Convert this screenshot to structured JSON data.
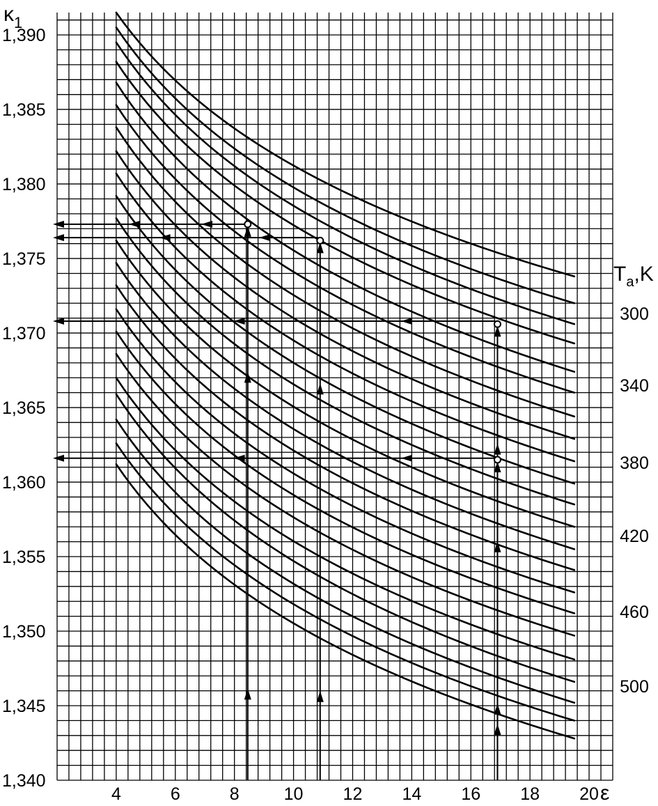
{
  "chart_data": {
    "type": "line",
    "title": "",
    "xlabel": "ε",
    "ylabel": "κ1",
    "ylabel_main": "κ",
    "ylabel_sub": "1",
    "right_axis_label": "Ta,K",
    "right_axis_label_main": "T",
    "right_axis_label_sub": "a",
    "right_axis_label_suffix": ",K",
    "xlim": [
      2,
      20.8
    ],
    "ylim": [
      1.34,
      1.3915
    ],
    "grid": true,
    "x_ticks": [
      "4",
      "6",
      "8",
      "10",
      "12",
      "14",
      "16",
      "18",
      "20"
    ],
    "y_ticks": [
      "1,340",
      "1,345",
      "1,350",
      "1,355",
      "1,360",
      "1,365",
      "1,370",
      "1,375",
      "1,380",
      "1,385",
      "1,390"
    ],
    "right_ticks": [
      {
        "label": "300",
        "k": 1.3713
      },
      {
        "label": "340",
        "k": 1.3665
      },
      {
        "label": "380",
        "k": 1.3613
      },
      {
        "label": "420",
        "k": 1.3564
      },
      {
        "label": "460",
        "k": 1.3513
      },
      {
        "label": "500",
        "k": 1.3463
      }
    ],
    "series": [
      {
        "values": [
          [
            4,
            1.3915
          ],
          [
            19.5,
            1.3738
          ]
        ]
      },
      {
        "values": [
          [
            4,
            1.3905
          ],
          [
            19.5,
            1.372
          ]
        ]
      },
      {
        "values": [
          [
            4,
            1.3895
          ],
          [
            19.5,
            1.3706
          ]
        ]
      },
      {
        "values": [
          [
            4,
            1.3882
          ],
          [
            19.5,
            1.3693
          ]
        ]
      },
      {
        "values": [
          [
            4,
            1.3868
          ],
          [
            19.5,
            1.3674
          ]
        ]
      },
      {
        "values": [
          [
            4,
            1.3853
          ],
          [
            19.5,
            1.366
          ]
        ]
      },
      {
        "values": [
          [
            4,
            1.3838
          ],
          [
            19.5,
            1.3644
          ]
        ]
      },
      {
        "values": [
          [
            4,
            1.3822
          ],
          [
            19.5,
            1.3629
          ]
        ]
      },
      {
        "values": [
          [
            4,
            1.3807
          ],
          [
            19.5,
            1.3614
          ]
        ]
      },
      {
        "values": [
          [
            4,
            1.3792
          ],
          [
            19.5,
            1.3599
          ]
        ]
      },
      {
        "values": [
          [
            4,
            1.3777
          ],
          [
            19.5,
            1.3585
          ]
        ]
      },
      {
        "values": [
          [
            4,
            1.3762
          ],
          [
            19.5,
            1.357
          ]
        ]
      },
      {
        "values": [
          [
            4,
            1.3747
          ],
          [
            19.5,
            1.3555
          ]
        ]
      },
      {
        "values": [
          [
            4,
            1.3732
          ],
          [
            19.5,
            1.3541
          ]
        ]
      },
      {
        "values": [
          [
            4,
            1.3716
          ],
          [
            19.5,
            1.3526
          ]
        ]
      },
      {
        "values": [
          [
            4,
            1.3701
          ],
          [
            19.5,
            1.3512
          ]
        ]
      },
      {
        "values": [
          [
            4,
            1.3686
          ],
          [
            19.5,
            1.3497
          ]
        ]
      },
      {
        "values": [
          [
            4,
            1.367
          ],
          [
            19.5,
            1.3481
          ]
        ]
      },
      {
        "values": [
          [
            4,
            1.3659
          ],
          [
            19.5,
            1.3466
          ]
        ]
      },
      {
        "values": [
          [
            4,
            1.3642
          ],
          [
            19.5,
            1.3452
          ]
        ]
      },
      {
        "values": [
          [
            4,
            1.3626
          ],
          [
            19.5,
            1.344
          ]
        ]
      },
      {
        "values": [
          [
            4,
            1.3612
          ],
          [
            19.5,
            1.3428
          ]
        ]
      }
    ],
    "example_points": [
      {
        "eps": 8.45,
        "k": 1.3773,
        "k_read": 1.3773
      },
      {
        "eps": 10.9,
        "k": 1.3762,
        "k_read": 1.3764
      },
      {
        "eps": 16.9,
        "k": 1.3706,
        "k_read": 1.3708
      },
      {
        "eps": 16.9,
        "k": 1.3615,
        "k_read": 1.3616
      }
    ]
  }
}
